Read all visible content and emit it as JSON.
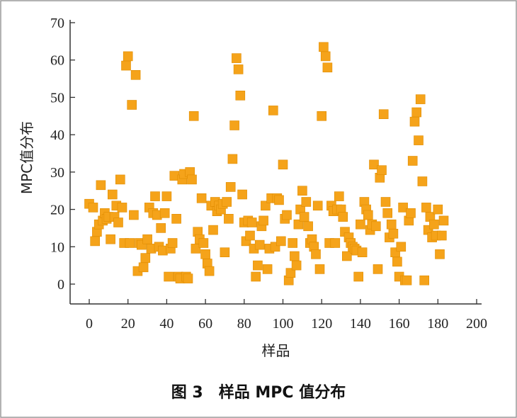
{
  "caption": {
    "number": "图 3",
    "text": "样品 MPC 值分布"
  },
  "chart_data": {
    "type": "scatter",
    "xlabel": "样品",
    "ylabel": "MPC值分布",
    "xlim": [
      0,
      200
    ],
    "ylim": [
      0,
      70
    ],
    "xticks": [
      0,
      20,
      40,
      60,
      80,
      100,
      120,
      140,
      160,
      180,
      200
    ],
    "yticks": [
      0,
      10,
      20,
      30,
      40,
      50,
      60,
      70
    ],
    "grid": false,
    "marker_color": "#F5A31A",
    "points": [
      [
        0,
        21.5
      ],
      [
        2,
        20.5
      ],
      [
        3,
        11.5
      ],
      [
        4,
        14
      ],
      [
        5,
        16
      ],
      [
        6,
        26.5
      ],
      [
        7,
        17
      ],
      [
        8,
        19
      ],
      [
        9,
        17.5
      ],
      [
        10,
        18
      ],
      [
        11,
        12
      ],
      [
        12,
        24
      ],
      [
        13,
        18
      ],
      [
        14,
        21
      ],
      [
        15,
        16.5
      ],
      [
        16,
        28
      ],
      [
        17,
        20.5
      ],
      [
        18,
        11
      ],
      [
        19,
        58.5
      ],
      [
        20,
        61
      ],
      [
        21,
        11
      ],
      [
        22,
        48
      ],
      [
        23,
        18.5
      ],
      [
        24,
        56
      ],
      [
        25,
        3.5
      ],
      [
        26,
        11
      ],
      [
        27,
        10.5
      ],
      [
        28,
        4.5
      ],
      [
        29,
        7
      ],
      [
        30,
        12
      ],
      [
        31,
        20.5
      ],
      [
        32,
        9.5
      ],
      [
        33,
        19
      ],
      [
        34,
        23.5
      ],
      [
        35,
        18.5
      ],
      [
        36,
        10
      ],
      [
        37,
        15
      ],
      [
        38,
        9
      ],
      [
        39,
        19
      ],
      [
        40,
        23.5
      ],
      [
        41,
        2
      ],
      [
        42,
        9.5
      ],
      [
        43,
        11
      ],
      [
        44,
        29
      ],
      [
        45,
        17.5
      ],
      [
        46,
        2
      ],
      [
        47,
        1.5
      ],
      [
        48,
        28
      ],
      [
        49,
        29.5
      ],
      [
        50,
        2
      ],
      [
        51,
        1.5
      ],
      [
        52,
        30
      ],
      [
        53,
        28
      ],
      [
        54,
        45
      ],
      [
        55,
        9.5
      ],
      [
        56,
        14
      ],
      [
        57,
        12
      ],
      [
        58,
        23
      ],
      [
        59,
        11
      ],
      [
        60,
        8
      ],
      [
        61,
        5.5
      ],
      [
        62,
        3.5
      ],
      [
        63,
        21
      ],
      [
        64,
        14.5
      ],
      [
        65,
        22
      ],
      [
        66,
        19.5
      ],
      [
        67,
        21
      ],
      [
        68,
        20
      ],
      [
        69,
        21.5
      ],
      [
        70,
        8.5
      ],
      [
        71,
        22
      ],
      [
        72,
        17.5
      ],
      [
        73,
        26
      ],
      [
        74,
        33.5
      ],
      [
        75,
        42.5
      ],
      [
        76,
        60.5
      ],
      [
        77,
        57.5
      ],
      [
        78,
        50.5
      ],
      [
        79,
        24
      ],
      [
        80,
        16.5
      ],
      [
        81,
        11.5
      ],
      [
        82,
        17
      ],
      [
        83,
        13
      ],
      [
        84,
        16.5
      ],
      [
        85,
        9.5
      ],
      [
        86,
        2
      ],
      [
        87,
        5
      ],
      [
        88,
        10.5
      ],
      [
        89,
        15.5
      ],
      [
        90,
        17
      ],
      [
        91,
        21
      ],
      [
        92,
        4
      ],
      [
        93,
        9.5
      ],
      [
        94,
        23
      ],
      [
        95,
        46.5
      ],
      [
        96,
        10
      ],
      [
        97,
        23
      ],
      [
        98,
        22.5
      ],
      [
        99,
        11.5
      ],
      [
        100,
        32
      ],
      [
        101,
        17.5
      ],
      [
        102,
        18.5
      ],
      [
        103,
        1
      ],
      [
        104,
        3
      ],
      [
        105,
        11
      ],
      [
        106,
        7.5
      ],
      [
        107,
        5
      ],
      [
        108,
        16
      ],
      [
        109,
        20
      ],
      [
        110,
        25
      ],
      [
        111,
        18
      ],
      [
        112,
        22
      ],
      [
        113,
        15.5
      ],
      [
        114,
        11
      ],
      [
        115,
        12
      ],
      [
        116,
        10
      ],
      [
        117,
        8
      ],
      [
        118,
        21
      ],
      [
        119,
        4
      ],
      [
        120,
        45
      ],
      [
        121,
        63.5
      ],
      [
        122,
        61
      ],
      [
        123,
        58
      ],
      [
        124,
        11
      ],
      [
        125,
        21
      ],
      [
        126,
        19.5
      ],
      [
        127,
        11
      ],
      [
        128,
        20
      ],
      [
        129,
        23.5
      ],
      [
        130,
        20
      ],
      [
        131,
        18
      ],
      [
        132,
        14
      ],
      [
        133,
        7.5
      ],
      [
        134,
        12.5
      ],
      [
        135,
        11
      ],
      [
        136,
        10
      ],
      [
        137,
        9.5
      ],
      [
        138,
        9
      ],
      [
        139,
        2
      ],
      [
        140,
        16
      ],
      [
        141,
        8.5
      ],
      [
        142,
        22
      ],
      [
        143,
        20
      ],
      [
        144,
        18.5
      ],
      [
        145,
        14.5
      ],
      [
        146,
        16
      ],
      [
        147,
        32
      ],
      [
        148,
        15.5
      ],
      [
        149,
        4
      ],
      [
        150,
        28.5
      ],
      [
        151,
        30.5
      ],
      [
        152,
        45.5
      ],
      [
        153,
        22
      ],
      [
        154,
        19
      ],
      [
        155,
        12.5
      ],
      [
        156,
        16
      ],
      [
        157,
        13.5
      ],
      [
        158,
        8.5
      ],
      [
        159,
        6
      ],
      [
        160,
        2
      ],
      [
        161,
        10
      ],
      [
        162,
        20.5
      ],
      [
        163,
        1
      ],
      [
        164,
        1
      ],
      [
        165,
        17
      ],
      [
        166,
        19
      ],
      [
        167,
        33
      ],
      [
        168,
        43.5
      ],
      [
        169,
        46
      ],
      [
        170,
        38.5
      ],
      [
        171,
        49.5
      ],
      [
        172,
        27.5
      ],
      [
        173,
        1
      ],
      [
        174,
        20.5
      ],
      [
        175,
        14.5
      ],
      [
        176,
        18
      ],
      [
        177,
        12.5
      ],
      [
        178,
        16
      ],
      [
        179,
        13
      ],
      [
        180,
        20
      ],
      [
        181,
        8
      ],
      [
        182,
        13
      ],
      [
        183,
        17
      ]
    ]
  }
}
